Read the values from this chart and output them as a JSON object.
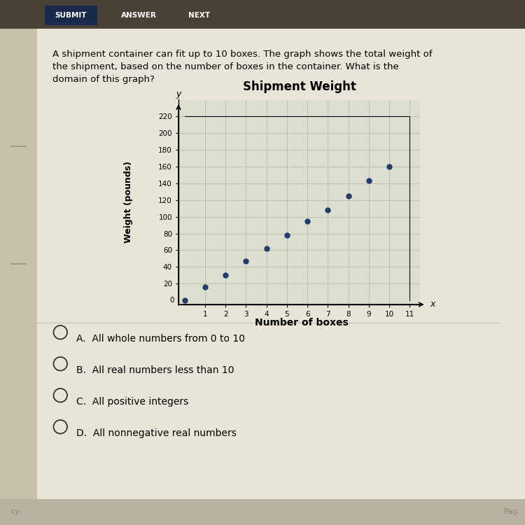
{
  "title": "Shipment Weight",
  "xlabel": "Number of boxes",
  "ylabel": "Weight (pounds)",
  "x_data": [
    0,
    1,
    2,
    3,
    4,
    5,
    6,
    7,
    8,
    9,
    10
  ],
  "y_data": [
    0,
    16,
    30,
    47,
    62,
    78,
    95,
    108,
    125,
    143,
    160
  ],
  "dot_color": "#1f3d6e",
  "dot_size": 25,
  "xlim": [
    -0.3,
    11.5
  ],
  "ylim": [
    -5,
    240
  ],
  "xticks": [
    1,
    2,
    3,
    4,
    5,
    6,
    7,
    8,
    9,
    10,
    11
  ],
  "yticks": [
    20,
    40,
    60,
    80,
    100,
    120,
    140,
    160,
    180,
    200,
    220
  ],
  "chart_bg": "#deded0",
  "grid_color": "#c0c0b0",
  "page_bg": "#d8d0b8",
  "content_bg": "#e8e4d8",
  "toolbar_bg": "#4a4035",
  "submit_bg": "#1a2a4a",
  "description": "A shipment container can fit up to 10 boxes. The graph shows the total weight of\nthe shipment, based on the number of boxes in the container. What is the\ndomain of this graph?",
  "choices": [
    "A.  All whole numbers from 0 to 10",
    "B.  All real numbers less than 10",
    "C.  All positive integers",
    "D.  All nonnegative real numbers"
  ],
  "button_labels": [
    "SUBMIT",
    "ANSWER",
    "NEXT"
  ],
  "button_bg": [
    "#1a2a4a",
    "#4a4035",
    "#4a4035"
  ]
}
